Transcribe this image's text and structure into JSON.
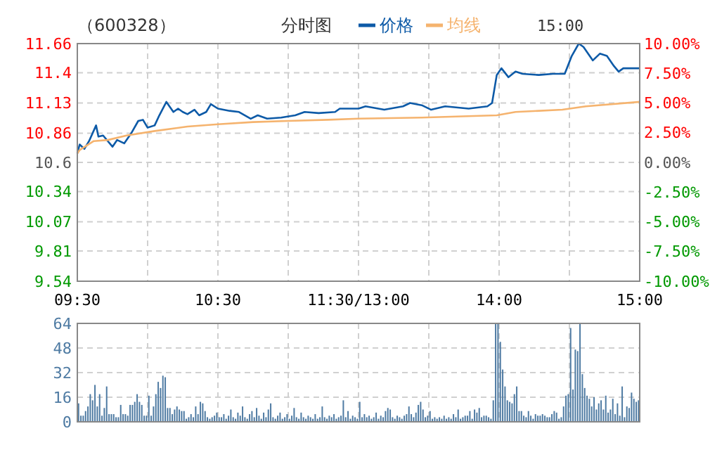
{
  "chart_data": [
    {
      "type": "line",
      "title": "（600328）",
      "subtitle": "分时图",
      "annotations": [
        "15:00"
      ],
      "legend": "top",
      "grid": true,
      "line_style": "solid",
      "marker": "none",
      "categories": [
        "09:30",
        null,
        null,
        null,
        null,
        null,
        null,
        null,
        null,
        null,
        null,
        null,
        null,
        null,
        null,
        null,
        null,
        null,
        null,
        null,
        null,
        null,
        null,
        null,
        null,
        null,
        null,
        null,
        null,
        null,
        null,
        null,
        null,
        null,
        null,
        null,
        null,
        null,
        null,
        null,
        null,
        null,
        null,
        null,
        null,
        null,
        null,
        null,
        null,
        null,
        null,
        null,
        null,
        null,
        null,
        null,
        null,
        null,
        null,
        null,
        "10:30",
        null,
        null,
        null,
        null,
        null,
        null,
        null,
        null,
        null,
        null,
        null,
        null,
        null,
        null,
        null,
        null,
        null,
        null,
        null,
        null,
        null,
        null,
        null,
        null,
        null,
        null,
        null,
        null,
        null,
        null,
        null,
        null,
        null,
        null,
        null,
        null,
        null,
        null,
        null,
        null,
        null,
        null,
        null,
        null,
        null,
        null,
        null,
        null,
        null,
        null,
        null,
        null,
        null,
        null,
        null,
        null,
        null,
        null,
        null,
        "11:30/13:00",
        null,
        null,
        null,
        null,
        null,
        null,
        null,
        null,
        null,
        null,
        null,
        null,
        null,
        null,
        null,
        null,
        null,
        null,
        null,
        null,
        null,
        null,
        null,
        null,
        null,
        null,
        null,
        null,
        null,
        null,
        null,
        null,
        null,
        null,
        null,
        null,
        null,
        null,
        null,
        null,
        null,
        null,
        null,
        null,
        null,
        null,
        null,
        null,
        null,
        null,
        null,
        null,
        null,
        null,
        null,
        null,
        null,
        null,
        null,
        "14:00",
        null,
        null,
        null,
        null,
        null,
        null,
        null,
        null,
        null,
        null,
        null,
        null,
        null,
        null,
        null,
        null,
        null,
        null,
        null,
        null,
        null,
        null,
        null,
        null,
        null,
        null,
        null,
        null,
        null,
        null,
        null,
        null,
        null,
        null,
        null,
        null,
        null,
        null,
        null,
        null,
        null,
        null,
        null,
        null,
        null,
        null,
        null,
        null,
        null,
        null,
        null,
        null,
        null,
        null,
        null,
        null,
        null,
        null,
        null,
        "15:00"
      ],
      "ylim": [
        9.54,
        11.66
      ],
      "yticks": [
        9.54,
        9.81,
        10.07,
        10.34,
        10.6,
        10.86,
        11.13,
        11.4,
        11.66
      ],
      "y2lim": [
        -10,
        10
      ],
      "y2ticks": [
        {
          "value": -10,
          "label": "-10.00%"
        },
        {
          "value": -7.5,
          "label": "-7.50%"
        },
        {
          "value": -5,
          "label": "-5.00%"
        },
        {
          "value": -2.5,
          "label": "-2.50%"
        },
        {
          "value": 0,
          "label": "0.00%"
        },
        {
          "value": 2.5,
          "label": "2.50%"
        },
        {
          "value": 5,
          "label": "5.00%"
        },
        {
          "value": 7.5,
          "label": "7.50%"
        },
        {
          "value": 10,
          "label": "10.00%"
        }
      ],
      "series": [
        {
          "name": "价格",
          "color": "#0d5aa7",
          "values": [
            10.68,
            10.76,
            null,
            10.72,
            null,
            10.79,
            null,
            null,
            10.93,
            10.83,
            null,
            10.84,
            null,
            null,
            null,
            10.74,
            null,
            10.8,
            null,
            null,
            10.77,
            null,
            null,
            10.86,
            null,
            null,
            10.97,
            null,
            10.98,
            null,
            10.91,
            null,
            null,
            10.93,
            null,
            11.02,
            null,
            null,
            11.14,
            null,
            null,
            11.05,
            null,
            11.08,
            null,
            11.05,
            null,
            11.03,
            null,
            null,
            11.07,
            null,
            11.02,
            null,
            null,
            11.05,
            null,
            11.12,
            null,
            null,
            11.08,
            null,
            null,
            null,
            null,
            11.06,
            null,
            null,
            null,
            11.05,
            null,
            null,
            null,
            null,
            10.99,
            null,
            null,
            11.02,
            null,
            null,
            null,
            10.99,
            null,
            null,
            null,
            null,
            null,
            11.0,
            null,
            null,
            null,
            null,
            null,
            11.02,
            null,
            null,
            null,
            11.05,
            null,
            null,
            null,
            null,
            null,
            11.04,
            null,
            null,
            null,
            null,
            null,
            null,
            11.05,
            null,
            11.08,
            null,
            null,
            null,
            null,
            null,
            null,
            null,
            11.08,
            null,
            null,
            11.1,
            null,
            null,
            null,
            null,
            null,
            null,
            null,
            11.07,
            null,
            null,
            null,
            null,
            null,
            null,
            null,
            11.1,
            null,
            null,
            11.13,
            null,
            null,
            null,
            null,
            11.11,
            null,
            null,
            null,
            11.07,
            null,
            null,
            null,
            null,
            null,
            11.1,
            null,
            null,
            null,
            null,
            null,
            null,
            null,
            null,
            null,
            11.08,
            null,
            null,
            null,
            null,
            null,
            null,
            null,
            11.1,
            null,
            11.13,
            null,
            11.38,
            null,
            11.44,
            null,
            null,
            11.36,
            null,
            null,
            11.41,
            null,
            null,
            11.39,
            null,
            null,
            null,
            null,
            null,
            null,
            11.38,
            null,
            null,
            null,
            null,
            null,
            11.39,
            null,
            null,
            null,
            null,
            11.39,
            null,
            null,
            11.55,
            null,
            null,
            11.66,
            null,
            11.63,
            null,
            null,
            null,
            11.51,
            null,
            null,
            11.57,
            null,
            null,
            11.55,
            null,
            null,
            11.46,
            null,
            11.41,
            null,
            11.44,
            null,
            null,
            null,
            null,
            null,
            null,
            11.44
          ]
        },
        {
          "name": "均线",
          "color": "#f5b36e",
          "values": [
            10.68,
            10.71,
            null,
            null,
            null,
            null,
            null,
            10.79,
            null,
            null,
            null,
            null,
            null,
            10.8,
            null,
            null,
            null,
            null,
            null,
            null,
            null,
            10.84,
            null,
            null,
            null,
            null,
            null,
            null,
            null,
            null,
            null,
            null,
            null,
            10.88,
            null,
            null,
            null,
            null,
            null,
            null,
            null,
            null,
            null,
            null,
            null,
            null,
            null,
            10.92,
            null,
            null,
            null,
            null,
            null,
            null,
            null,
            null,
            null,
            null,
            null,
            null,
            10.94,
            null,
            null,
            null,
            null,
            null,
            null,
            null,
            null,
            null,
            null,
            null,
            null,
            null,
            null,
            10.96,
            null,
            null,
            null,
            null,
            null,
            null,
            null,
            null,
            null,
            null,
            null,
            null,
            null,
            null,
            10.97,
            null,
            null,
            null,
            null,
            null,
            null,
            null,
            null,
            null,
            null,
            null,
            null,
            null,
            null,
            null,
            null,
            10.98,
            null,
            null,
            null,
            null,
            null,
            null,
            null,
            null,
            null,
            null,
            null,
            null,
            10.99,
            null,
            null,
            null,
            null,
            null,
            null,
            null,
            null,
            null,
            null,
            null,
            null,
            null,
            null,
            null,
            null,
            null,
            null,
            null,
            null,
            null,
            null,
            null,
            null,
            null,
            null,
            11.0,
            null,
            null,
            null,
            null,
            null,
            null,
            null,
            null,
            null,
            null,
            null,
            null,
            null,
            null,
            null,
            null,
            null,
            null,
            null,
            null,
            null,
            null,
            null,
            null,
            null,
            null,
            null,
            null,
            null,
            null,
            null,
            11.02,
            null,
            null,
            null,
            null,
            null,
            null,
            null,
            11.05,
            null,
            null,
            null,
            null,
            null,
            null,
            null,
            null,
            null,
            null,
            null,
            null,
            null,
            null,
            null,
            null,
            null,
            null,
            null,
            11.07,
            null,
            null,
            null,
            null,
            null,
            null,
            null,
            null,
            null,
            11.1,
            null,
            null,
            null,
            null,
            null,
            null,
            null,
            null,
            null,
            null,
            null,
            null,
            null,
            null,
            null,
            null,
            null,
            null,
            null,
            null,
            null,
            null,
            11.14
          ]
        }
      ]
    },
    {
      "type": "bar",
      "tick_labels": "y",
      "grid": true,
      "categories": [
        null,
        null,
        null,
        null,
        null,
        null,
        null,
        null,
        null,
        null,
        null,
        null,
        null,
        null,
        null,
        null,
        null,
        null,
        null,
        null,
        null,
        null,
        null,
        null,
        null,
        null,
        null,
        null,
        null,
        null,
        null,
        null,
        null,
        null,
        null,
        null,
        null,
        null,
        null,
        null,
        null,
        null,
        null,
        null,
        null,
        null,
        null,
        null,
        null,
        null,
        null,
        null,
        null,
        null,
        null,
        null,
        null,
        null,
        null,
        null,
        null,
        null,
        null,
        null,
        null,
        null,
        null,
        null,
        null,
        null,
        null,
        null,
        null,
        null,
        null,
        null,
        null,
        null,
        null,
        null,
        null,
        null,
        null,
        null,
        null,
        null,
        null,
        null,
        null,
        null,
        null,
        null,
        null,
        null,
        null,
        null,
        null,
        null,
        null,
        null,
        null,
        null,
        null,
        null,
        null,
        null,
        null,
        null,
        null,
        null,
        null,
        null,
        null,
        null,
        null,
        null,
        null,
        null,
        null,
        null,
        null,
        null,
        null,
        null,
        null,
        null,
        null,
        null,
        null,
        null,
        null,
        null,
        null,
        null,
        null,
        null,
        null,
        null,
        null,
        null,
        null,
        null,
        null,
        null,
        null,
        null,
        null,
        null,
        null,
        null,
        null,
        null,
        null,
        null,
        null,
        null,
        null,
        null,
        null,
        null,
        null,
        null,
        null,
        null,
        null,
        null,
        null,
        null,
        null,
        null,
        null,
        null,
        null,
        null,
        null,
        null,
        null,
        null,
        null,
        null,
        null,
        null,
        null,
        null,
        null,
        null,
        null,
        null,
        null,
        null,
        null,
        null,
        null,
        null,
        null,
        null,
        null,
        null,
        null,
        null,
        null,
        null,
        null,
        null,
        null,
        null,
        null,
        null,
        null,
        null,
        null,
        null,
        null,
        null,
        null,
        null,
        null,
        null,
        null,
        null,
        null,
        null,
        null,
        null,
        null,
        null,
        null,
        null,
        null,
        null,
        null,
        null,
        null,
        null,
        null,
        null,
        null,
        null,
        null,
        null,
        null
      ],
      "ylim": [
        0,
        64
      ],
      "yticks": [
        0,
        16,
        32,
        48,
        64
      ],
      "series": [
        {
          "color": "#4f7ba3",
          "values": [
            null,
            12,
            4,
            4,
            7,
            10,
            18,
            14,
            24,
            10,
            18,
            4,
            9,
            23,
            5,
            5,
            5,
            3,
            3,
            11,
            5,
            5,
            4,
            11,
            11,
            13,
            18,
            13,
            11,
            4,
            4,
            17,
            4,
            10,
            18,
            26,
            22,
            30,
            29,
            9,
            9,
            5,
            8,
            10,
            8,
            7,
            7,
            2,
            3,
            5,
            3,
            10,
            5,
            13,
            12,
            7,
            3,
            2,
            3,
            4,
            6,
            3,
            3,
            5,
            2,
            4,
            8,
            3,
            2,
            6,
            4,
            10,
            3,
            2,
            5,
            7,
            3,
            9,
            4,
            2,
            6,
            3,
            8,
            12,
            3,
            2,
            4,
            6,
            2,
            3,
            5,
            2,
            4,
            9,
            3,
            2,
            6,
            3,
            2,
            4,
            3,
            2,
            5,
            2,
            3,
            10,
            3,
            2,
            4,
            3,
            5,
            2,
            3,
            4,
            14,
            3,
            7,
            2,
            4,
            3,
            2,
            13,
            3,
            5,
            3,
            4,
            2,
            3,
            6,
            2,
            4,
            3,
            7,
            9,
            8,
            3,
            2,
            4,
            3,
            2,
            4,
            5,
            10,
            5,
            3,
            6,
            11,
            13,
            8,
            3,
            4,
            7,
            2,
            3,
            2,
            3,
            2,
            4,
            2,
            3,
            2,
            5,
            3,
            8,
            2,
            3,
            4,
            4,
            7,
            2,
            8,
            6,
            9,
            3,
            4,
            4,
            3,
            2,
            14,
            64,
            64,
            52,
            34,
            23,
            14,
            13,
            12,
            18,
            23,
            7,
            7,
            4,
            3,
            7,
            4,
            2,
            5,
            4,
            4,
            5,
            4,
            3,
            3,
            5,
            7,
            6,
            2,
            3,
            10,
            17,
            18,
            61,
            21,
            47,
            46,
            64,
            31,
            22,
            17,
            15,
            10,
            16,
            8,
            12,
            14,
            8,
            17,
            6,
            8,
            15,
            5,
            12,
            4,
            23,
            3,
            10,
            9,
            19,
            15,
            13,
            14
          ]
        }
      ]
    }
  ]
}
